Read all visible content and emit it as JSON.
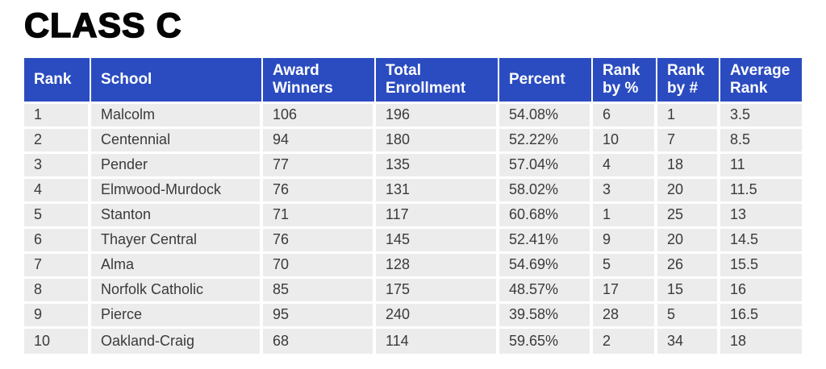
{
  "title": "CLASS C",
  "colors": {
    "header_bg": "#2b4cc0",
    "header_text": "#ffffff",
    "row_bg": "#ececec",
    "body_text": "#3a3a3a",
    "title_text": "#050505"
  },
  "table": {
    "columns": [
      "Rank",
      "School",
      "Award Winners",
      "Total Enrollment",
      "Percent",
      "Rank by %",
      "Rank by #",
      "Average Rank"
    ],
    "rows": [
      [
        "1",
        "Malcolm",
        "106",
        "196",
        "54.08%",
        "6",
        "1",
        "3.5"
      ],
      [
        "2",
        "Centennial",
        "94",
        "180",
        "52.22%",
        "10",
        "7",
        "8.5"
      ],
      [
        "3",
        "Pender",
        "77",
        "135",
        "57.04%",
        "4",
        "18",
        "11"
      ],
      [
        "4",
        "Elmwood-Murdock",
        "76",
        "131",
        "58.02%",
        "3",
        "20",
        "11.5"
      ],
      [
        "5",
        "Stanton",
        "71",
        "117",
        "60.68%",
        "1",
        "25",
        "13"
      ],
      [
        "6",
        "Thayer Central",
        "76",
        "145",
        "52.41%",
        "9",
        "20",
        "14.5"
      ],
      [
        "7",
        "Alma",
        "70",
        "128",
        "54.69%",
        "5",
        "26",
        "15.5"
      ],
      [
        "8",
        "Norfolk Catholic",
        "85",
        "175",
        "48.57%",
        "17",
        "15",
        "16"
      ],
      [
        "9",
        "Pierce",
        "95",
        "240",
        "39.58%",
        "28",
        "5",
        "16.5"
      ],
      [
        "10",
        "Oakland-Craig",
        "68",
        "114",
        "59.65%",
        "2",
        "34",
        "18"
      ]
    ]
  }
}
